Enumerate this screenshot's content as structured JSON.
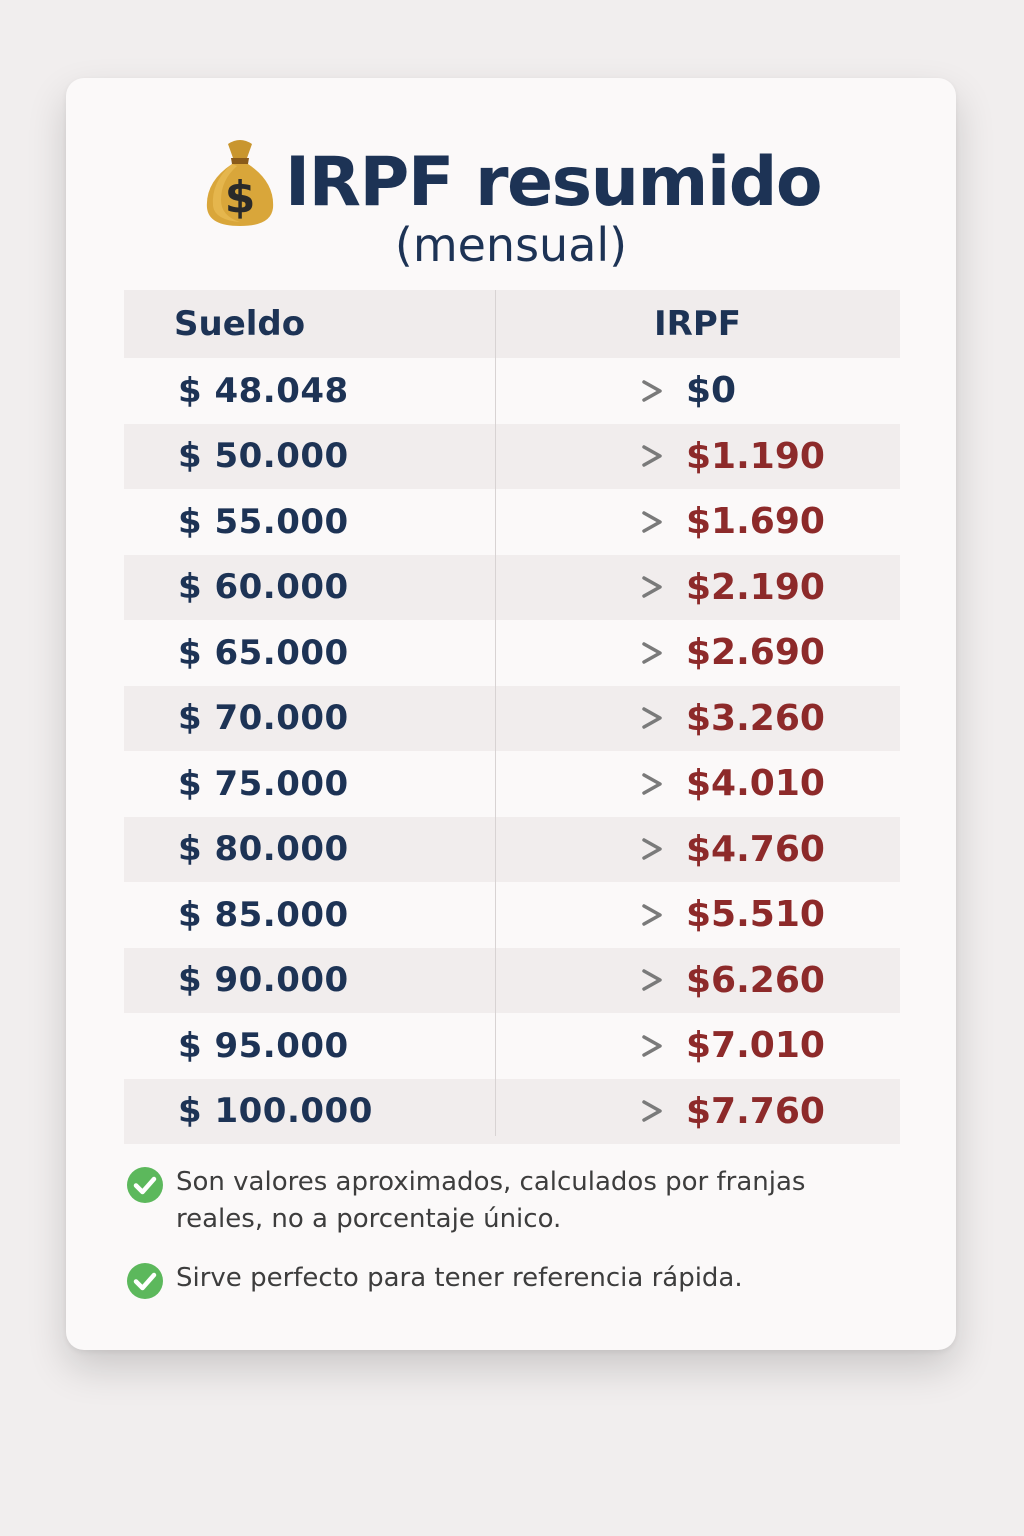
{
  "header": {
    "icon": "money-bag-icon",
    "title": "IRPF resumido",
    "subtitle": "(mensual)"
  },
  "table": {
    "columns": [
      "Sueldo",
      "IRPF"
    ],
    "rows": [
      {
        "sueldo": "$ 48.048",
        "irpf": "$0"
      },
      {
        "sueldo": "$ 50.000",
        "irpf": "$1.190"
      },
      {
        "sueldo": "$ 55.000",
        "irpf": "$1.690"
      },
      {
        "sueldo": "$ 60.000",
        "irpf": "$2.190"
      },
      {
        "sueldo": "$ 65.000",
        "irpf": "$2.690"
      },
      {
        "sueldo": "$ 70.000",
        "irpf": "$3.260"
      },
      {
        "sueldo": "$ 75.000",
        "irpf": "$4.010"
      },
      {
        "sueldo": "$ 80.000",
        "irpf": "$4.760"
      },
      {
        "sueldo": "$ 85.000",
        "irpf": "$5.510"
      },
      {
        "sueldo": "$ 90.000",
        "irpf": "$6.260"
      },
      {
        "sueldo": "$ 95.000",
        "irpf": "$7.010"
      },
      {
        "sueldo": "$ 100.000",
        "irpf": "$7.760"
      }
    ]
  },
  "notes": [
    {
      "icon": "check-circle-icon",
      "text": "Son valores aproximados, calculados por franjas reales, no a porcentaje único."
    },
    {
      "icon": "check-circle-icon",
      "text": "Sirve perfecto para tener referencia rápida."
    }
  ],
  "colors": {
    "title": "#1d3355",
    "tax_value": "#8d2a2a",
    "check": "#5cb85c"
  }
}
